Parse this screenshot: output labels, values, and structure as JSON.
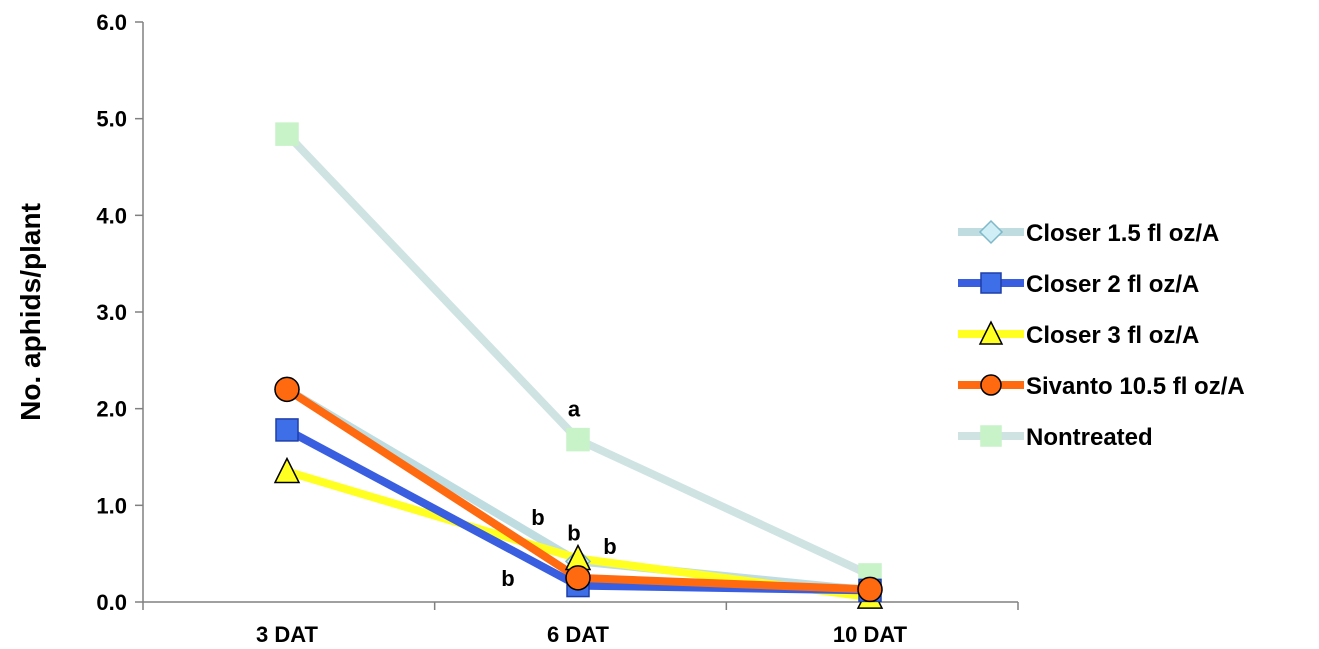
{
  "chart_data": {
    "type": "line",
    "title": "",
    "xlabel": "",
    "ylabel": "No. aphids/plant",
    "categories": [
      "3 DAT",
      "6 DAT",
      "10 DAT"
    ],
    "y_ticks": [
      "0.0",
      "1.0",
      "2.0",
      "3.0",
      "4.0",
      "5.0",
      "6.0"
    ],
    "ylim": [
      0,
      6
    ],
    "grid": false,
    "legend_position": "right",
    "series": [
      {
        "name": "Closer 1.5 fl oz/A",
        "values": [
          2.2,
          0.42,
          0.12
        ],
        "line_color": "#bfdde0",
        "marker": "diamond",
        "marker_fill": "#cfeef6",
        "marker_stroke": "#7fb8c8"
      },
      {
        "name": "Closer 2 fl oz/A",
        "values": [
          1.78,
          0.17,
          0.12
        ],
        "line_color": "#3a5ee0",
        "marker": "square",
        "marker_fill": "#3f6fe8",
        "marker_stroke": "#1f3fa8"
      },
      {
        "name": "Closer 3 fl oz/A",
        "values": [
          1.35,
          0.45,
          0.05
        ],
        "line_color": "#ffff22",
        "marker": "triangle",
        "marker_fill": "#ffff22",
        "marker_stroke": "#000000"
      },
      {
        "name": "Sivanto 10.5 fl oz/A",
        "values": [
          2.2,
          0.25,
          0.13
        ],
        "line_color": "#ff6a10",
        "marker": "circle",
        "marker_fill": "#ff6a10",
        "marker_stroke": "#000000"
      },
      {
        "name": "Nontreated",
        "values": [
          4.84,
          1.68,
          0.28
        ],
        "line_color": "#cfe3e3",
        "marker": "square",
        "marker_fill": "#c8f2c8",
        "marker_stroke": "#c8f2c8"
      }
    ],
    "annotations": [
      {
        "text": "a",
        "category": "6 DAT",
        "y": 2.0
      },
      {
        "text": "b",
        "category": "6 DAT",
        "y": 0.88,
        "side": "left"
      },
      {
        "text": "b",
        "category": "6 DAT",
        "y": 0.72,
        "side": "center"
      },
      {
        "text": "b",
        "category": "6 DAT",
        "y": 0.58,
        "side": "right"
      },
      {
        "text": "b",
        "category": "6 DAT",
        "y": 0.25,
        "side": "far-left"
      }
    ]
  }
}
